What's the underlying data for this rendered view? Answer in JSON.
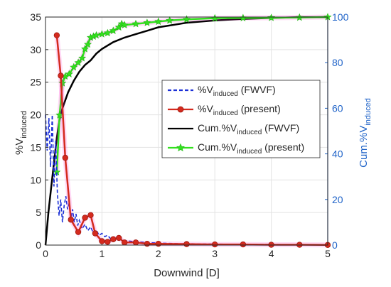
{
  "chart_data": {
    "type": "line",
    "xlabel": "Downwind [D]",
    "ylabel_left_base": "%V",
    "ylabel_left_sub": "induced",
    "ylabel_right_base": "Cum.%V",
    "ylabel_right_sub": "induced",
    "xlim": [
      0,
      5
    ],
    "ylim_left": [
      0,
      35
    ],
    "ylim_right": [
      0,
      100
    ],
    "x_ticks": [
      "0",
      "1",
      "2",
      "3",
      "4",
      "5"
    ],
    "y_left_ticks": [
      "0",
      "5",
      "10",
      "15",
      "20",
      "25",
      "30",
      "35"
    ],
    "y_right_ticks": [
      "0",
      "20",
      "40",
      "60",
      "80",
      "100"
    ],
    "grid": true,
    "legend_position": "center-right",
    "colors": {
      "fwvf_dashed": "#1a2fd6",
      "present_red": "#d42a1e",
      "cum_fwvf_black": "#000000",
      "cum_present_green": "#33e01f",
      "right_axis": "#1f63c8",
      "highlight": "#ff33cc"
    },
    "series": [
      {
        "label_base": "%V",
        "label_sub": "induced",
        "label_suffix": " (FWVF)",
        "axis": "left",
        "style": "dashed",
        "x": [
          0,
          0.03,
          0.06,
          0.09,
          0.12,
          0.15,
          0.18,
          0.21,
          0.24,
          0.27,
          0.3,
          0.33,
          0.36,
          0.39,
          0.42,
          0.45,
          0.48,
          0.51,
          0.54,
          0.57,
          0.6,
          0.65,
          0.7,
          0.75,
          0.8,
          0.85,
          0.9,
          0.95,
          1.0,
          1.05,
          1.1,
          1.15,
          1.2,
          1.25,
          1.3,
          1.4,
          1.5,
          1.6,
          1.7,
          1.8,
          1.9,
          2.0,
          2.2,
          2.4,
          2.6,
          2.8,
          3.0,
          3.5,
          4.0,
          4.5,
          5.0
        ],
        "y": [
          20.0,
          14.5,
          19.5,
          12.0,
          20.0,
          9.0,
          16.0,
          8.0,
          4.5,
          7.0,
          3.5,
          6.0,
          7.5,
          5.5,
          6.5,
          4.0,
          5.5,
          3.5,
          4.8,
          3.0,
          3.8,
          2.5,
          3.2,
          2.2,
          2.8,
          1.8,
          2.3,
          1.5,
          1.8,
          1.3,
          1.5,
          1.0,
          1.2,
          0.9,
          1.0,
          0.7,
          0.6,
          0.5,
          0.45,
          0.4,
          0.35,
          0.3,
          0.25,
          0.2,
          0.2,
          0.15,
          0.15,
          0.1,
          0.1,
          0.05,
          0.05
        ]
      },
      {
        "label_base": "%V",
        "label_sub": "induced",
        "label_suffix": " (present)",
        "axis": "left",
        "style": "line-circle",
        "x": [
          0.2,
          0.27,
          0.35,
          0.45,
          0.58,
          0.7,
          0.8,
          0.88,
          1.0,
          1.1,
          1.2,
          1.3,
          1.4,
          1.6,
          1.8,
          2.0,
          2.5,
          3.0,
          3.5,
          4.0,
          4.5,
          5.0
        ],
        "y": [
          32.2,
          26.0,
          13.4,
          3.9,
          2.0,
          4.2,
          4.6,
          1.8,
          0.6,
          0.5,
          0.9,
          1.1,
          0.4,
          0.4,
          0.2,
          0.2,
          0.15,
          0.1,
          0.1,
          0.05,
          0.05,
          0.02
        ]
      },
      {
        "label_base": "Cum.%V",
        "label_sub": "induced",
        "label_suffix": " (FWVF)",
        "axis": "right",
        "style": "solid",
        "x": [
          0,
          0.05,
          0.1,
          0.15,
          0.2,
          0.25,
          0.3,
          0.4,
          0.5,
          0.6,
          0.7,
          0.8,
          0.9,
          1.0,
          1.2,
          1.4,
          1.6,
          1.8,
          2.0,
          2.5,
          3.0,
          3.5,
          4.0,
          4.5,
          5.0
        ],
        "y": [
          0,
          14,
          25,
          36,
          47,
          55,
          60,
          67,
          72,
          76,
          79,
          81,
          84,
          86,
          89,
          91,
          92.5,
          94,
          95.5,
          97.5,
          98.5,
          99.2,
          99.6,
          99.9,
          100
        ]
      },
      {
        "label_base": "Cum.%V",
        "label_sub": "induced",
        "label_suffix": " (present)",
        "axis": "right",
        "style": "line-star",
        "x": [
          0.2,
          0.25,
          0.3,
          0.35,
          0.42,
          0.5,
          0.58,
          0.65,
          0.7,
          0.75,
          0.8,
          0.85,
          0.9,
          1.0,
          1.1,
          1.2,
          1.3,
          1.35,
          1.4,
          1.6,
          1.8,
          2.0,
          2.2,
          2.5,
          3.0,
          3.5,
          4.0,
          4.5,
          5.0
        ],
        "y": [
          32,
          57,
          71,
          74,
          75,
          78,
          80,
          82,
          86,
          88,
          91,
          91.5,
          92,
          92.5,
          93,
          94,
          95.5,
          97,
          96.5,
          97,
          97.5,
          98,
          98.5,
          99,
          99.5,
          99.6,
          99.7,
          99.8,
          100
        ]
      }
    ]
  }
}
